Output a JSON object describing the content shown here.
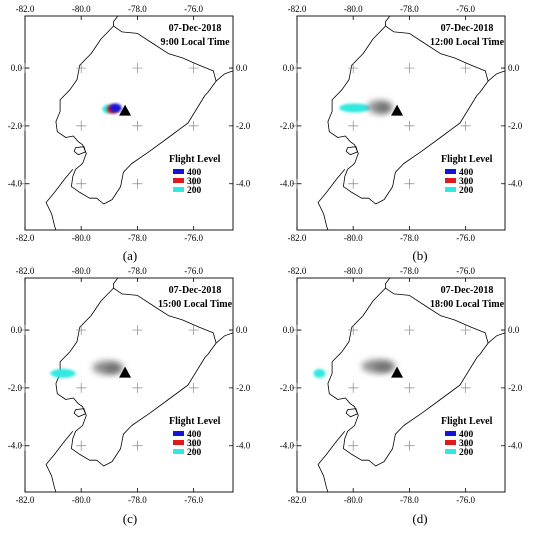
{
  "chart_data": [
    {
      "type": "map",
      "panel_label": "(a)",
      "date": "07-Dec-2018",
      "time_label": "9:00 Local Time",
      "xlim": [
        -82.0,
        -74.6
      ],
      "ylim": [
        -5.6,
        1.8
      ],
      "xticks": [
        "-82.0",
        "-80.0",
        "-78.0",
        "-76.0"
      ],
      "yticks": [
        "0.0",
        "-2.0",
        "-4.0"
      ],
      "grid_crosses": true,
      "legend": {
        "title": "Flight Level",
        "placement": "bottom-right",
        "entries": [
          {
            "label": "400",
            "color": "#1414d8"
          },
          {
            "label": "300",
            "color": "#e01818"
          },
          {
            "label": "200",
            "color": "#30e8e0"
          }
        ]
      },
      "volcano_lonlat": [
        -78.44,
        -1.47
      ],
      "plumes": [
        {
          "level": "200",
          "color": "#30e8e0",
          "lon_range": [
            -79.25,
            -78.8
          ],
          "lat_center": -1.42
        },
        {
          "level": "300",
          "color": "#e01818",
          "lon_range": [
            -79.05,
            -78.7
          ],
          "lat_center": -1.42
        },
        {
          "level": "400",
          "color": "#1414d8",
          "lon_range": [
            -78.95,
            -78.6
          ],
          "lat_center": -1.38
        }
      ]
    },
    {
      "type": "map",
      "panel_label": "(b)",
      "date": "07-Dec-2018",
      "time_label": "12:00 Local Time",
      "xlim": [
        -82.0,
        -74.6
      ],
      "ylim": [
        -5.6,
        1.8
      ],
      "xticks": [
        "-82.0",
        "-80.0",
        "-78.0",
        "-76.0"
      ],
      "yticks": [
        "0.0",
        "-2.0",
        "-4.0"
      ],
      "grid_crosses": true,
      "legend": {
        "title": "Flight Level",
        "placement": "bottom-right",
        "entries": [
          {
            "label": "400",
            "color": "#1414d8"
          },
          {
            "label": "300",
            "color": "#e01818"
          },
          {
            "label": "200",
            "color": "#30e8e0"
          }
        ]
      },
      "volcano_lonlat": [
        -78.44,
        -1.47
      ],
      "plumes": [
        {
          "level": "200",
          "color": "#30e8e0",
          "lon_range": [
            -80.5,
            -79.4
          ],
          "lat_center": -1.38
        },
        {
          "level": "ash",
          "color": "#777777",
          "lon_range": [
            -79.5,
            -78.6
          ],
          "lat_center": -1.35
        }
      ]
    },
    {
      "type": "map",
      "panel_label": "(c)",
      "date": "07-Dec-2018",
      "time_label": "15:00 Local Time",
      "xlim": [
        -82.0,
        -74.6
      ],
      "ylim": [
        -5.6,
        1.8
      ],
      "xticks": [
        "-82.0",
        "-80.0",
        "-78.0",
        "-76.0"
      ],
      "yticks": [
        "0.0",
        "-2.0",
        "-4.0"
      ],
      "grid_crosses": true,
      "legend": {
        "title": "Flight Level",
        "placement": "bottom-right",
        "entries": [
          {
            "label": "400",
            "color": "#1414d8"
          },
          {
            "label": "300",
            "color": "#e01818"
          },
          {
            "label": "200",
            "color": "#30e8e0"
          }
        ]
      },
      "volcano_lonlat": [
        -78.44,
        -1.47
      ],
      "plumes": [
        {
          "level": "200",
          "color": "#30e8e0",
          "lon_range": [
            -81.1,
            -80.2
          ],
          "lat_center": -1.5
        },
        {
          "level": "ash",
          "color": "#777777",
          "lon_range": [
            -79.6,
            -78.5
          ],
          "lat_center": -1.3
        }
      ]
    },
    {
      "type": "map",
      "panel_label": "(d)",
      "date": "07-Dec-2018",
      "time_label": "18:00 Local Time",
      "xlim": [
        -82.0,
        -74.6
      ],
      "ylim": [
        -5.6,
        1.8
      ],
      "xticks": [
        "-82.0",
        "-80.0",
        "-78.0",
        "-76.0"
      ],
      "yticks": [
        "0.0",
        "-2.0",
        "-4.0"
      ],
      "grid_crosses": true,
      "legend": {
        "title": "Flight Level",
        "placement": "bottom-right",
        "entries": [
          {
            "label": "400",
            "color": "#1414d8"
          },
          {
            "label": "300",
            "color": "#e01818"
          },
          {
            "label": "200",
            "color": "#30e8e0"
          }
        ]
      },
      "volcano_lonlat": [
        -78.44,
        -1.47
      ],
      "plumes": [
        {
          "level": "200",
          "color": "#30e8e0",
          "lon_range": [
            -81.4,
            -81.0
          ],
          "lat_center": -1.5
        },
        {
          "level": "ash",
          "color": "#777777",
          "lon_range": [
            -79.7,
            -78.5
          ],
          "lat_center": -1.25
        }
      ]
    }
  ]
}
